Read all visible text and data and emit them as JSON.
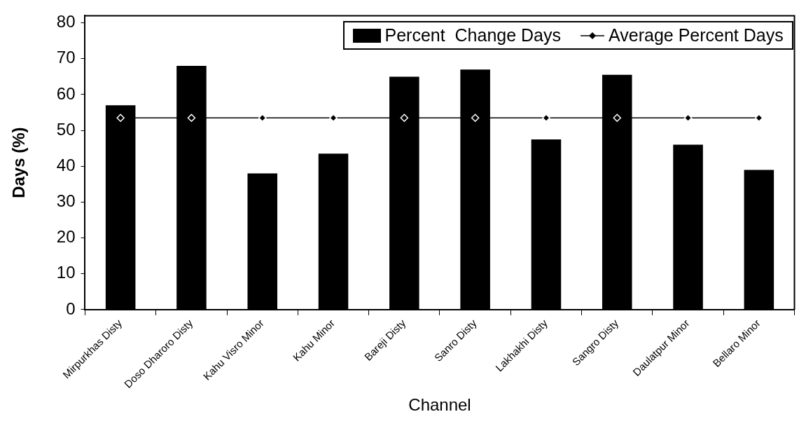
{
  "chart_data": {
    "type": "bar",
    "xlabel": "Channel",
    "ylabel": "Days (%)",
    "categories": [
      "Mirpurkhas Disty",
      "Doso Dharoro Disty",
      "Kahu Visro Minor",
      "Kahu Minor",
      "Bareji Disty",
      "Sanro Disty",
      "Lakhakhi Disty",
      "Sangro Disty",
      "Daulatpur Minor",
      "Bellaro Minor"
    ],
    "series": [
      {
        "name": "Percent  Change Days",
        "color": "#000000",
        "values": [
          57,
          68,
          38,
          43.5,
          65,
          67,
          47.5,
          65.5,
          46,
          39
        ]
      },
      {
        "name": "Average Percent Days",
        "type": "line",
        "color": "#000000",
        "marker": "diamond",
        "values": [
          53.5,
          53.5,
          53.5,
          53.5,
          53.5,
          53.5,
          53.5,
          53.5,
          53.5,
          53.5
        ]
      }
    ],
    "ylim": [
      0,
      82
    ],
    "yticks": [
      0,
      10,
      20,
      30,
      40,
      50,
      60,
      70,
      80
    ],
    "grid": false,
    "legend": "top right"
  }
}
